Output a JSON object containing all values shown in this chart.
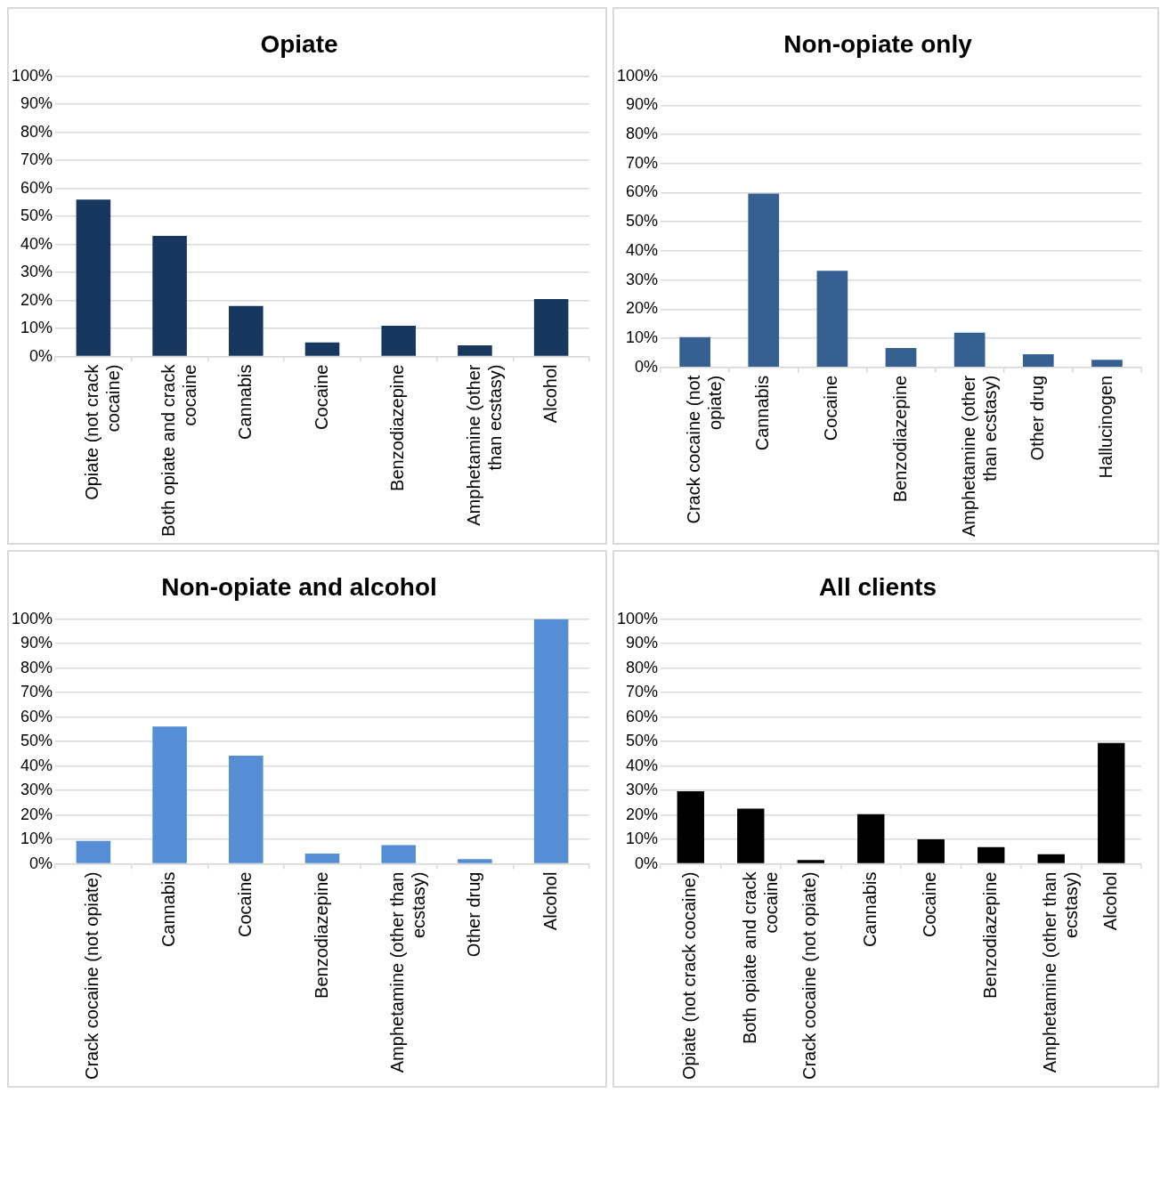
{
  "chart_data": [
    {
      "type": "bar",
      "title": "Opiate",
      "categories": [
        "Opiate (not crack cocaine)",
        "Both opiate and crack cocaine",
        "Cannabis",
        "Cocaine",
        "Benzodiazepine",
        "Amphetamine (other than ecstasy)",
        "Alcohol"
      ],
      "values": [
        56,
        43,
        18,
        5,
        11,
        4,
        20.5
      ],
      "color": "#17375e",
      "ylim": [
        0,
        100
      ],
      "yticks": [
        {
          "value": 0,
          "label": "0%"
        },
        {
          "value": 10,
          "label": "10%"
        },
        {
          "value": 20,
          "label": "20%"
        },
        {
          "value": 30,
          "label": "30%"
        },
        {
          "value": 40,
          "label": "40%"
        },
        {
          "value": 50,
          "label": "50%"
        },
        {
          "value": 60,
          "label": "60%"
        },
        {
          "value": 70,
          "label": "70%"
        },
        {
          "value": 80,
          "label": "80%"
        },
        {
          "value": 90,
          "label": "90%"
        },
        {
          "value": 100,
          "label": "100%"
        }
      ],
      "grid": "y"
    },
    {
      "type": "bar",
      "title": "Non-opiate only",
      "categories": [
        "Crack cocaine (not opiate)",
        "Cannabis",
        "Cocaine",
        "Benzodiazepine",
        "Amphetamine (other than ecstasy)",
        "Other drug",
        "Hallucinogen"
      ],
      "values": [
        10.4,
        59.7,
        33.2,
        6.7,
        11.9,
        4.5,
        2.6
      ],
      "color": "#376092",
      "ylim": [
        0,
        100
      ],
      "yticks": [
        {
          "value": 0,
          "label": "0%"
        },
        {
          "value": 10,
          "label": "10%"
        },
        {
          "value": 20,
          "label": "20%"
        },
        {
          "value": 30,
          "label": "30%"
        },
        {
          "value": 40,
          "label": "40%"
        },
        {
          "value": 50,
          "label": "50%"
        },
        {
          "value": 60,
          "label": "60%"
        },
        {
          "value": 70,
          "label": "70%"
        },
        {
          "value": 80,
          "label": "80%"
        },
        {
          "value": 90,
          "label": "90%"
        },
        {
          "value": 100,
          "label": "100%"
        }
      ],
      "grid": "y"
    },
    {
      "type": "bar",
      "title": "Non-opiate and alcohol",
      "categories": [
        "Crack cocaine (not opiate)",
        "Cannabis",
        "Cocaine",
        "Benzodiazepine",
        "Amphetamine (other than ecstasy)",
        "Other drug",
        "Alcohol"
      ],
      "values": [
        9.4,
        56.1,
        44.2,
        4.2,
        7.7,
        1.9,
        100
      ],
      "color": "#558ed5",
      "ylim": [
        0,
        100
      ],
      "yticks": [
        {
          "value": 0,
          "label": "0%"
        },
        {
          "value": 10,
          "label": "10%"
        },
        {
          "value": 20,
          "label": "20%"
        },
        {
          "value": 30,
          "label": "30%"
        },
        {
          "value": 40,
          "label": "40%"
        },
        {
          "value": 50,
          "label": "50%"
        },
        {
          "value": 60,
          "label": "60%"
        },
        {
          "value": 70,
          "label": "70%"
        },
        {
          "value": 80,
          "label": "80%"
        },
        {
          "value": 90,
          "label": "90%"
        },
        {
          "value": 100,
          "label": "100%"
        }
      ],
      "grid": "y"
    },
    {
      "type": "bar",
      "title": "All clients",
      "categories": [
        "Opiate (not crack cocaine)",
        "Both opiate and crack cocaine",
        "Crack cocaine (not opiate)",
        "Cannabis",
        "Cocaine",
        "Benzodiazepine",
        "Amphetamine (other than ecstasy)",
        "Alcohol"
      ],
      "values": [
        29.7,
        22.6,
        1.6,
        20.3,
        10,
        6.8,
        3.9,
        49.4
      ],
      "color": "#000000",
      "ylim": [
        0,
        100
      ],
      "yticks": [
        {
          "value": 0,
          "label": "0%"
        },
        {
          "value": 10,
          "label": "10%"
        },
        {
          "value": 20,
          "label": "20%"
        },
        {
          "value": 30,
          "label": "30%"
        },
        {
          "value": 40,
          "label": "40%"
        },
        {
          "value": 50,
          "label": "50%"
        },
        {
          "value": 60,
          "label": "60%"
        },
        {
          "value": 70,
          "label": "70%"
        },
        {
          "value": 80,
          "label": "80%"
        },
        {
          "value": 90,
          "label": "90%"
        },
        {
          "value": 100,
          "label": "100%"
        }
      ],
      "grid": "y"
    }
  ]
}
